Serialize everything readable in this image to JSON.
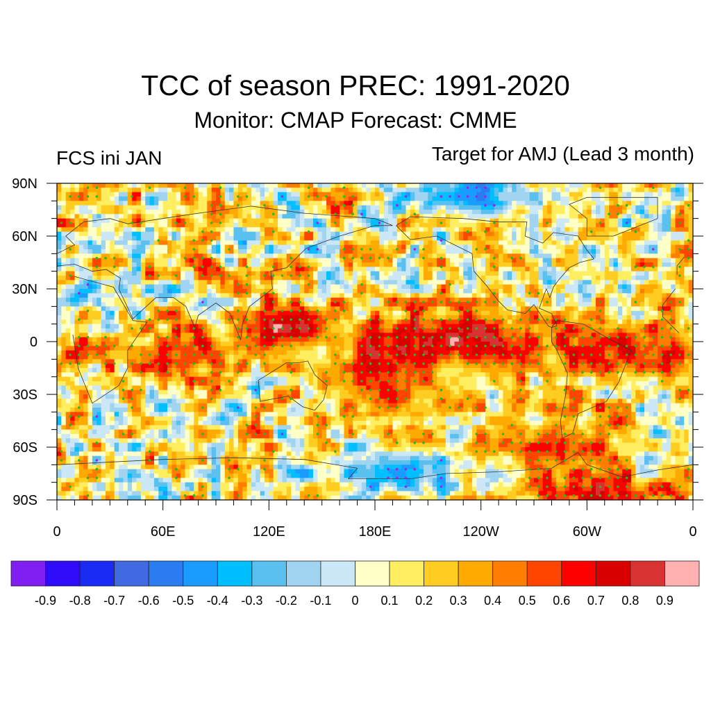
{
  "chart_data": {
    "type": "heatmap",
    "title": "TCC of season PREC: 1991-2020",
    "subtitle": "Monitor: CMAP   Forecast: CMME",
    "left_string": "FCS ini JAN",
    "right_string": "Target for AMJ (Lead 3 month)",
    "projection": "cylindrical-equidistant",
    "x_axis": {
      "range": [
        0,
        360
      ],
      "tick_values": [
        0,
        60,
        120,
        180,
        240,
        300,
        360
      ],
      "tick_labels": [
        "0",
        "60E",
        "120E",
        "180E",
        "120W",
        "60W",
        "0"
      ],
      "minor_tick_step": 10
    },
    "y_axis": {
      "range": [
        -90,
        90
      ],
      "tick_values": [
        90,
        60,
        30,
        0,
        -30,
        -60,
        -90
      ],
      "tick_labels": [
        "90N",
        "60N",
        "30N",
        "0",
        "30S",
        "60S",
        "90S"
      ],
      "minor_tick_step": 10
    },
    "colorbar": {
      "levels": [
        -0.9,
        -0.8,
        -0.7,
        -0.6,
        -0.5,
        -0.4,
        -0.3,
        -0.2,
        -0.1,
        0,
        0.1,
        0.2,
        0.3,
        0.4,
        0.5,
        0.6,
        0.7,
        0.8,
        0.9
      ],
      "labels": [
        "-0.9",
        "-0.8",
        "-0.7",
        "-0.6",
        "-0.5",
        "-0.4",
        "-0.3",
        "-0.2",
        "-0.1",
        "0",
        "0.1",
        "0.2",
        "0.3",
        "0.4",
        "0.5",
        "0.6",
        "0.7",
        "0.8",
        "0.9"
      ],
      "colors": [
        "#8020f0",
        "#2e0cf8",
        "#1a2cf4",
        "#4169e1",
        "#2a7cf0",
        "#1a9cff",
        "#00bfff",
        "#5ac0f0",
        "#a0d4f0",
        "#cce8f6",
        "#ffffc8",
        "#ffee60",
        "#ffcc22",
        "#ffaa00",
        "#ff7d00",
        "#ff4500",
        "#ff0000",
        "#d80000",
        "#d83232",
        "#ffb0b0"
      ],
      "orientation": "horizontal",
      "placement": "bottom"
    },
    "stippling": {
      "meaning": "significant correlation",
      "positive_color": "#22bb22",
      "negative_color": "#a020f0",
      "threshold": 0.35
    },
    "field_features": [
      {
        "name": "equatorial-central-pacific",
        "lon": [
          165,
          280
        ],
        "lat": [
          -10,
          10
        ],
        "value": 0.75
      },
      {
        "name": "maritime-continent-north",
        "lon": [
          115,
          145
        ],
        "lat": [
          0,
          18
        ],
        "value": 0.7
      },
      {
        "name": "tropical-indian-ocean",
        "lon": [
          45,
          100
        ],
        "lat": [
          -15,
          0
        ],
        "value": 0.6
      },
      {
        "name": "south-pacific-convergence",
        "lon": [
          150,
          220
        ],
        "lat": [
          -40,
          -15
        ],
        "value": 0.5
      },
      {
        "name": "tropical-atlantic",
        "lon": [
          300,
          360
        ],
        "lat": [
          -15,
          5
        ],
        "value": 0.5
      },
      {
        "name": "southern-ocean-pacific",
        "lon": [
          250,
          310
        ],
        "lat": [
          -70,
          -50
        ],
        "value": 0.55
      },
      {
        "name": "antarctic-south-atlantic-west",
        "lon": [
          260,
          340
        ],
        "lat": [
          -90,
          -82
        ],
        "value": 0.6
      },
      {
        "name": "new-guinea-minimum",
        "lon": [
          138,
          158
        ],
        "lat": [
          -8,
          -2
        ],
        "value": -0.3
      },
      {
        "name": "arctic-pacific-minimum",
        "lon": [
          210,
          260
        ],
        "lat": [
          75,
          90
        ],
        "value": -0.55
      },
      {
        "name": "ross-sea-minimum",
        "lon": [
          150,
          230
        ],
        "lat": [
          -80,
          -68
        ],
        "value": -0.4
      },
      {
        "name": "east-pacific-south-minimum",
        "lon": [
          215,
          245
        ],
        "lat": [
          -25,
          -12
        ],
        "value": -0.2
      }
    ]
  }
}
